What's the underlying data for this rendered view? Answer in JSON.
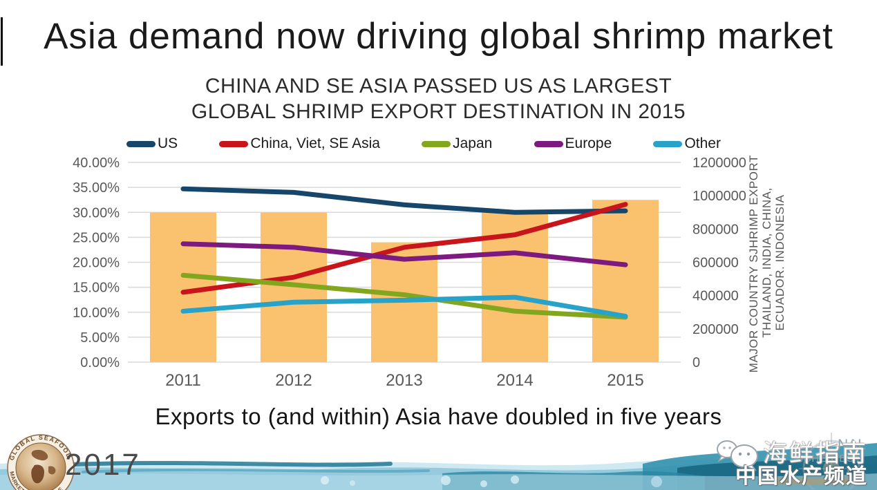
{
  "slide": {
    "title": "Asia demand now driving global shrimp market",
    "heading_line1": "CHINA AND SE ASIA PASSED US AS LARGEST",
    "heading_line2": "GLOBAL SHRIMP EXPORT DESTINATION IN 2015",
    "footnote": "Exports to (and within) Asia have doubled in five years",
    "year_badge": "2017"
  },
  "chart_data": {
    "type": "combo bar+line",
    "x": [
      "2011",
      "2012",
      "2013",
      "2014",
      "2015"
    ],
    "series": [
      {
        "name": "US",
        "color": "#17466B",
        "axis": "left",
        "values": [
          34.7,
          34.0,
          31.5,
          30.0,
          30.3
        ]
      },
      {
        "name": "China, Viet, SE Asia",
        "color": "#C8151C",
        "axis": "left",
        "values": [
          14.0,
          17.0,
          23.0,
          25.5,
          31.6
        ]
      },
      {
        "name": "Japan",
        "color": "#82A71F",
        "axis": "left",
        "values": [
          17.4,
          15.5,
          13.5,
          10.2,
          9.0
        ]
      },
      {
        "name": "Europe",
        "color": "#7D1A7F",
        "axis": "left",
        "values": [
          23.7,
          23.0,
          20.6,
          21.9,
          19.5
        ]
      },
      {
        "name": "Other",
        "color": "#27A3C9",
        "axis": "left",
        "values": [
          10.2,
          12.0,
          12.4,
          13.0,
          9.2
        ]
      }
    ],
    "bars": {
      "name": "Major country shrimp export volume",
      "color": "#FAC26E",
      "axis": "right",
      "values": [
        900000,
        900000,
        720000,
        900000,
        975000
      ]
    },
    "left_axis": {
      "min": 0,
      "max": 40,
      "tick_values": [
        40,
        35,
        30,
        25,
        20,
        15,
        10,
        5,
        0
      ],
      "ticks": [
        "40.00%",
        "35.00%",
        "30.00%",
        "25.00%",
        "20.00%",
        "15.00%",
        "10.00%",
        "5.00%",
        "0.00%"
      ]
    },
    "right_axis": {
      "min": 0,
      "max": 1200000,
      "tick_values": [
        1200000,
        1000000,
        800000,
        600000,
        400000,
        200000,
        0
      ],
      "ticks": [
        "1200000",
        "1000000",
        "800000",
        "600000",
        "400000",
        "200000",
        "0"
      ],
      "label_lines": [
        "MAJOR COUNTRY SJHRIMP EXPORT:",
        "THAILAND, INDIA, CHINA,",
        "ECUADOR. INDONESIA"
      ]
    },
    "grid": "horizontal",
    "legend_position": "top",
    "style": {
      "grid_color": "#D9D9D9",
      "axis_text_color": "#595959",
      "line_width": 7
    }
  },
  "footer": {
    "gsmc_logo": {
      "ring_text_top": "GLOBAL SEAFOOD",
      "ring_text_bottom": "MARKET CONFERENCE"
    },
    "water_image": "water-splash-photo"
  },
  "watermark": {
    "icon": "wechat-icon",
    "line1": "海鲜指南",
    "line2": "中国水产频道",
    "badge_fragments": {
      "f1": "NAL",
      "f2": "FISHERIES",
      "f3": "UTE"
    }
  }
}
